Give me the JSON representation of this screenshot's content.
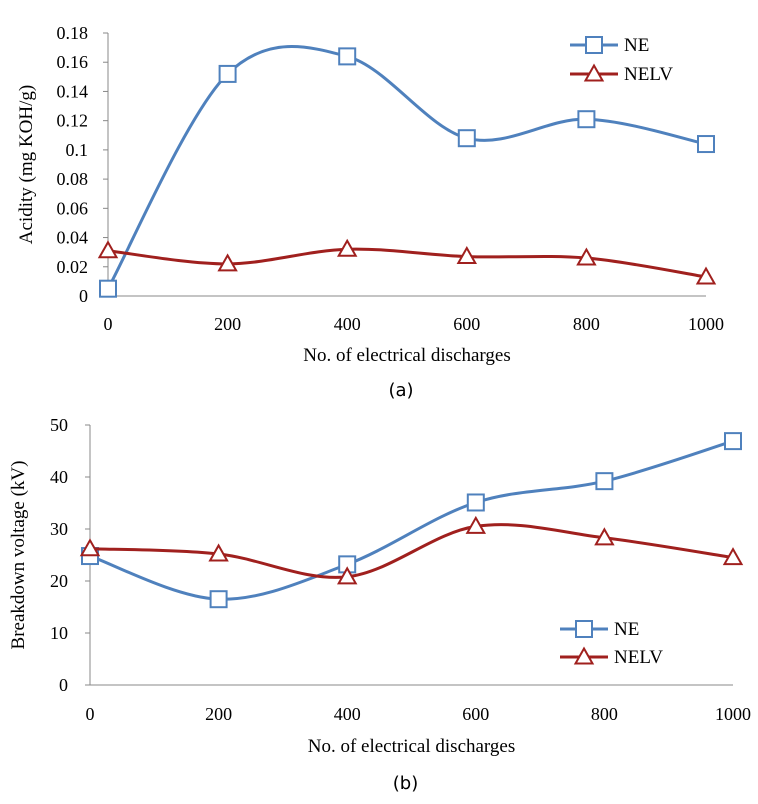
{
  "colors": {
    "NE": "#4F81BD",
    "NELV": "#A0201E",
    "axis": "#888888"
  },
  "chart_data": [
    {
      "id": "a",
      "type": "line",
      "caption": "(a)",
      "title": "",
      "xlabel": "No. of electrical discharges",
      "ylabel": "Acidity (mg KOH/g)",
      "x": [
        0,
        200,
        400,
        600,
        800,
        1000
      ],
      "xticks": [
        "0",
        "200",
        "400",
        "600",
        "800",
        "1000"
      ],
      "yticks": [
        "0",
        "0.02",
        "0.04",
        "0.06",
        "0.08",
        "0.1",
        "0.12",
        "0.14",
        "0.16",
        "0.18"
      ],
      "ylim": [
        0,
        0.18
      ],
      "grid": false,
      "smooth": true,
      "legend_position": "top-right",
      "series": [
        {
          "name": "NE",
          "marker": "square",
          "values": [
            0.005,
            0.152,
            0.164,
            0.108,
            0.121,
            0.104
          ]
        },
        {
          "name": "NELV",
          "marker": "triangle",
          "values": [
            0.031,
            0.022,
            0.032,
            0.027,
            0.026,
            0.013
          ]
        }
      ]
    },
    {
      "id": "b",
      "type": "line",
      "caption": "(b)",
      "title": "",
      "xlabel": "No. of electrical discharges",
      "ylabel": "Breakdown voltage (kV)",
      "x": [
        0,
        200,
        400,
        600,
        800,
        1000
      ],
      "xticks": [
        "0",
        "200",
        "400",
        "600",
        "800",
        "1000"
      ],
      "yticks": [
        "0",
        "10",
        "20",
        "30",
        "40",
        "50"
      ],
      "ylim": [
        0,
        50
      ],
      "grid": false,
      "smooth": true,
      "legend_position": "bottom-right",
      "series": [
        {
          "name": "NE",
          "marker": "square",
          "values": [
            24.8,
            16.5,
            23.2,
            35.1,
            39.2,
            46.9
          ]
        },
        {
          "name": "NELV",
          "marker": "triangle",
          "values": [
            26.2,
            25.2,
            20.8,
            30.5,
            28.3,
            24.5
          ]
        }
      ]
    }
  ]
}
